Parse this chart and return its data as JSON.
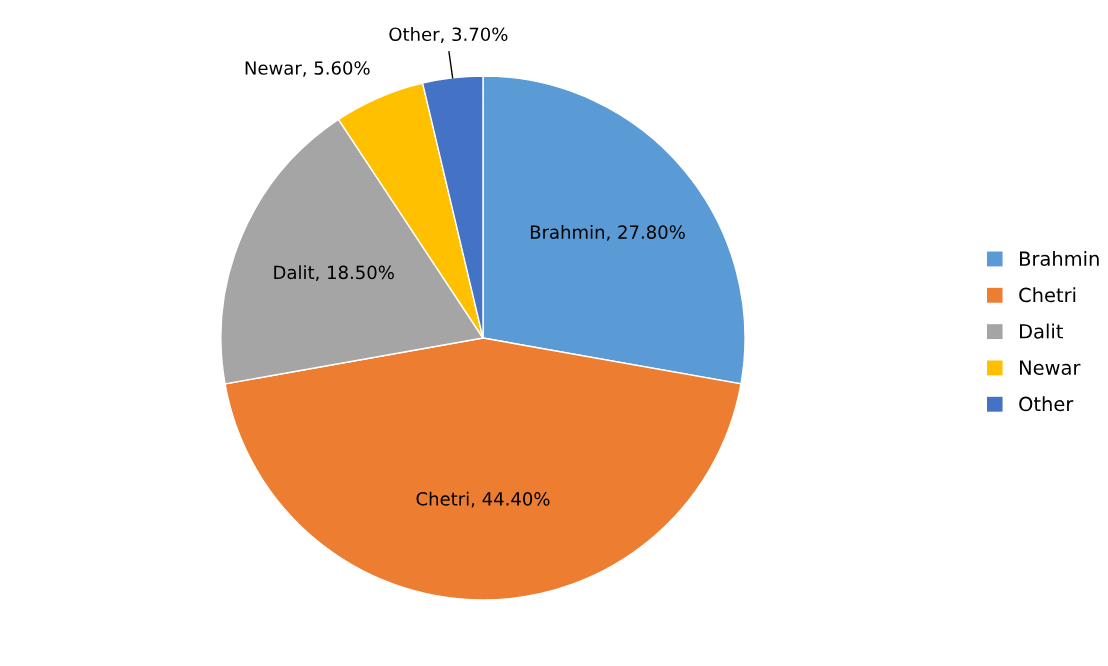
{
  "chart_data": {
    "type": "pie",
    "categories": [
      "Brahmin",
      "Chetri",
      "Dalit",
      "Newar",
      "Other"
    ],
    "values": [
      27.8,
      44.4,
      18.5,
      5.6,
      3.7
    ],
    "value_labels": [
      "Brahmin, 27.80%",
      "Chetri, 44.40%",
      "Dalit, 18.50%",
      "Newar, 5.60%",
      "Other, 3.70%"
    ],
    "colors": [
      "#5b9bd5",
      "#ed7d31",
      "#a5a5a5",
      "#ffc000",
      "#4472c4"
    ],
    "legend": "right"
  }
}
